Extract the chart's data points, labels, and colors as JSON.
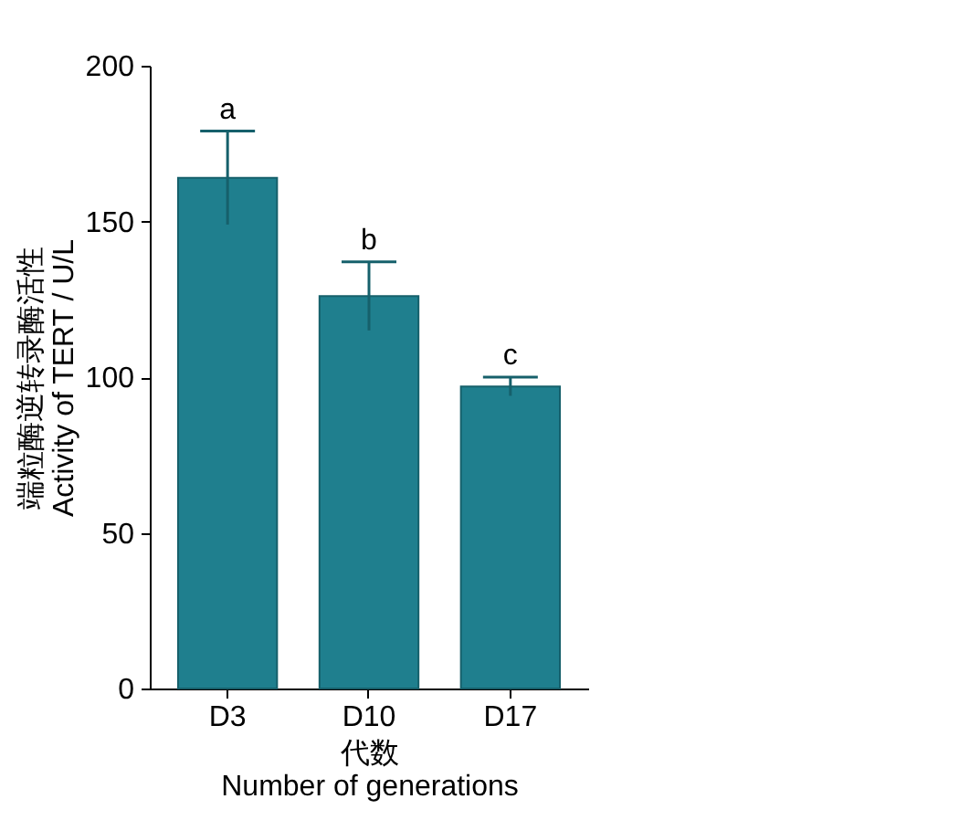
{
  "chart_data": {
    "type": "bar",
    "categories": [
      "D3",
      "D10",
      "D17"
    ],
    "values": [
      164,
      126,
      97
    ],
    "errors": [
      15,
      11,
      3
    ],
    "color": "#1f7f8e",
    "ylim": [
      0,
      200
    ],
    "yticks": [
      0,
      50,
      100,
      150,
      200
    ],
    "ylabel": "端粒酶逆转录酶活性\nActivity of TERT / U/L",
    "xlabel": "代数\nNumber of generations",
    "grid": false,
    "annotations": [
      {
        "text": "a",
        "x": "D3",
        "y": 179
      },
      {
        "text": "b",
        "x": "D10",
        "y": 137
      },
      {
        "text": "c",
        "x": "D17",
        "y": 100
      }
    ]
  }
}
